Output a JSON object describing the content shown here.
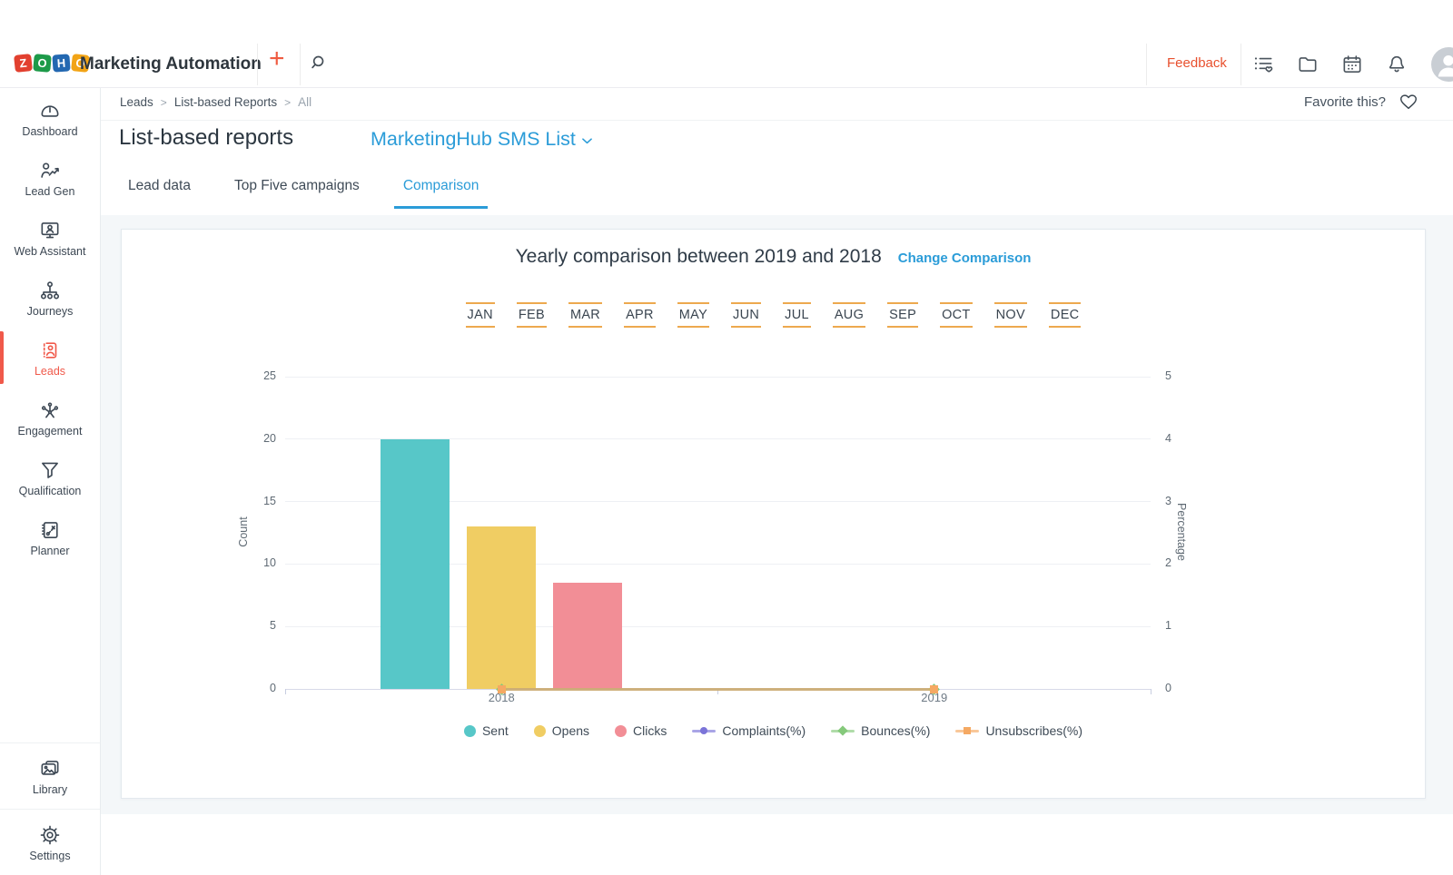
{
  "topbar": {
    "app_title": "Marketing Automation",
    "logo_tiles": [
      {
        "letter": "Z",
        "color": "#E2402F"
      },
      {
        "letter": "O",
        "color": "#1D9A49"
      },
      {
        "letter": "H",
        "color": "#2368B1"
      },
      {
        "letter": "O",
        "color": "#F2A416"
      }
    ],
    "plus_label": "+",
    "feedback_label": "Feedback",
    "action_icons": [
      "list-heart-icon",
      "folder-icon",
      "calendar-icon",
      "bell-icon"
    ]
  },
  "breadcrumb": {
    "items": [
      "Leads",
      "List-based Reports",
      "All"
    ],
    "separator": ">"
  },
  "favorite": {
    "label": "Favorite this?"
  },
  "page": {
    "title": "List-based reports",
    "list_name": "MarketingHub SMS List"
  },
  "tabs": [
    {
      "label": "Lead data",
      "active": false
    },
    {
      "label": "Top Five campaigns",
      "active": false
    },
    {
      "label": "Comparison",
      "active": true
    }
  ],
  "card": {
    "change_link": "Change Comparison",
    "months": [
      "JAN",
      "FEB",
      "MAR",
      "APR",
      "MAY",
      "JUN",
      "JUL",
      "AUG",
      "SEP",
      "OCT",
      "NOV",
      "DEC"
    ]
  },
  "sidebar": {
    "items": [
      {
        "label": "Dashboard",
        "icon": "dashboard-icon",
        "active": false
      },
      {
        "label": "Lead Gen",
        "icon": "lead-gen-icon",
        "active": false
      },
      {
        "label": "Web Assistant",
        "icon": "web-assistant-icon",
        "active": false
      },
      {
        "label": "Journeys",
        "icon": "journeys-icon",
        "active": false
      },
      {
        "label": "Leads",
        "icon": "leads-icon",
        "active": true
      },
      {
        "label": "Engagement",
        "icon": "engagement-icon",
        "active": false
      },
      {
        "label": "Qualification",
        "icon": "qualification-icon",
        "active": false
      },
      {
        "label": "Planner",
        "icon": "planner-icon",
        "active": false
      }
    ],
    "footer_items": [
      {
        "label": "Library",
        "icon": "library-icon",
        "active": false
      },
      {
        "label": "Settings",
        "icon": "settings-icon",
        "active": false
      }
    ]
  },
  "chart_data": {
    "type": "bar",
    "dual_axis": true,
    "title": "Yearly comparison between 2019 and 2018",
    "categories": [
      "2018",
      "2019"
    ],
    "series": [
      {
        "name": "Sent",
        "type": "bar",
        "axis": "left",
        "color": "#57C7C8",
        "values": [
          20,
          0
        ]
      },
      {
        "name": "Opens",
        "type": "bar",
        "axis": "left",
        "color": "#F0CD63",
        "values": [
          13,
          0
        ]
      },
      {
        "name": "Clicks",
        "type": "bar",
        "axis": "left",
        "color": "#F28E96",
        "values": [
          8.5,
          0
        ]
      },
      {
        "name": "Complaints(%)",
        "type": "line",
        "axis": "right",
        "color": "#7B74D8",
        "marker": "circle",
        "values": [
          0,
          0
        ]
      },
      {
        "name": "Bounces(%)",
        "type": "line",
        "axis": "right",
        "color": "#85C97B",
        "marker": "diamond",
        "values": [
          0,
          0
        ]
      },
      {
        "name": "Unsubscribes(%)",
        "type": "line",
        "axis": "right",
        "color": "#F5A963",
        "marker": "square",
        "values": [
          0,
          0
        ]
      }
    ],
    "left_axis": {
      "label": "Count",
      "min": 0,
      "max": 25,
      "ticks": [
        0,
        5,
        10,
        15,
        20,
        25
      ]
    },
    "right_axis": {
      "label": "Percentage",
      "min": 0,
      "max": 5,
      "ticks": [
        0,
        1,
        2,
        3,
        4,
        5
      ]
    },
    "grid": true,
    "legend_position": "bottom"
  },
  "colors": {
    "accent_blue": "#2B9CD8",
    "accent_red": "#F0594A",
    "feedback_red": "#E8502E",
    "month_underline": "#EDA94E"
  }
}
